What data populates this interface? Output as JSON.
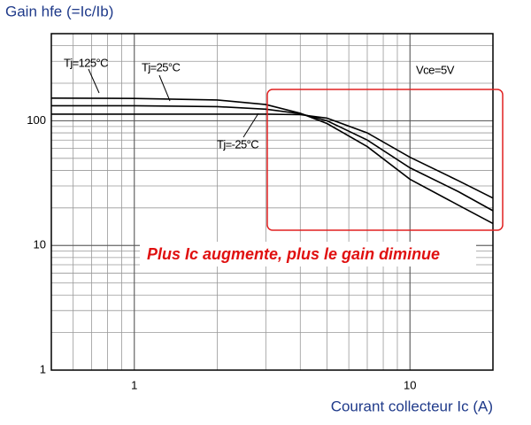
{
  "chart_data": {
    "type": "line",
    "title": "Gain hfe (=Ic/Ib)",
    "x_label": "Courant collecteur Ic (A)",
    "annotation": "Plus Ic augmente, plus le gain diminue",
    "condition": "Vce=5V",
    "x": [
      0.5,
      1,
      2,
      3,
      4,
      5,
      7,
      10,
      15,
      20
    ],
    "series": [
      {
        "name": "Tj=125°C",
        "color": "#000000",
        "values": [
          152,
          151,
          147,
          135,
          115,
          95,
          62,
          34,
          21,
          15
        ]
      },
      {
        "name": "Tj=25°C",
        "color": "#000000",
        "values": [
          132,
          132,
          130,
          124,
          114,
          100,
          70,
          42,
          27,
          19
        ]
      },
      {
        "name": "Tj=-25°C",
        "color": "#000000",
        "values": [
          113,
          113,
          113,
          113,
          112,
          105,
          80,
          51,
          33,
          24
        ]
      }
    ],
    "xlim": [
      0.5,
      20
    ],
    "ylim": [
      1,
      500
    ],
    "xticks": [
      1,
      10
    ],
    "yticks": [
      1,
      10,
      100
    ],
    "xgrid": [
      0.6,
      0.7,
      0.8,
      0.9,
      1,
      2,
      3,
      4,
      5,
      6,
      7,
      8,
      9,
      10
    ],
    "ygrid": [
      2,
      3,
      4,
      5,
      6,
      7,
      8,
      9,
      10,
      20,
      30,
      40,
      50,
      60,
      70,
      80,
      90,
      100,
      200,
      300,
      400
    ],
    "log_x": true,
    "log_y": true,
    "grid": true
  }
}
